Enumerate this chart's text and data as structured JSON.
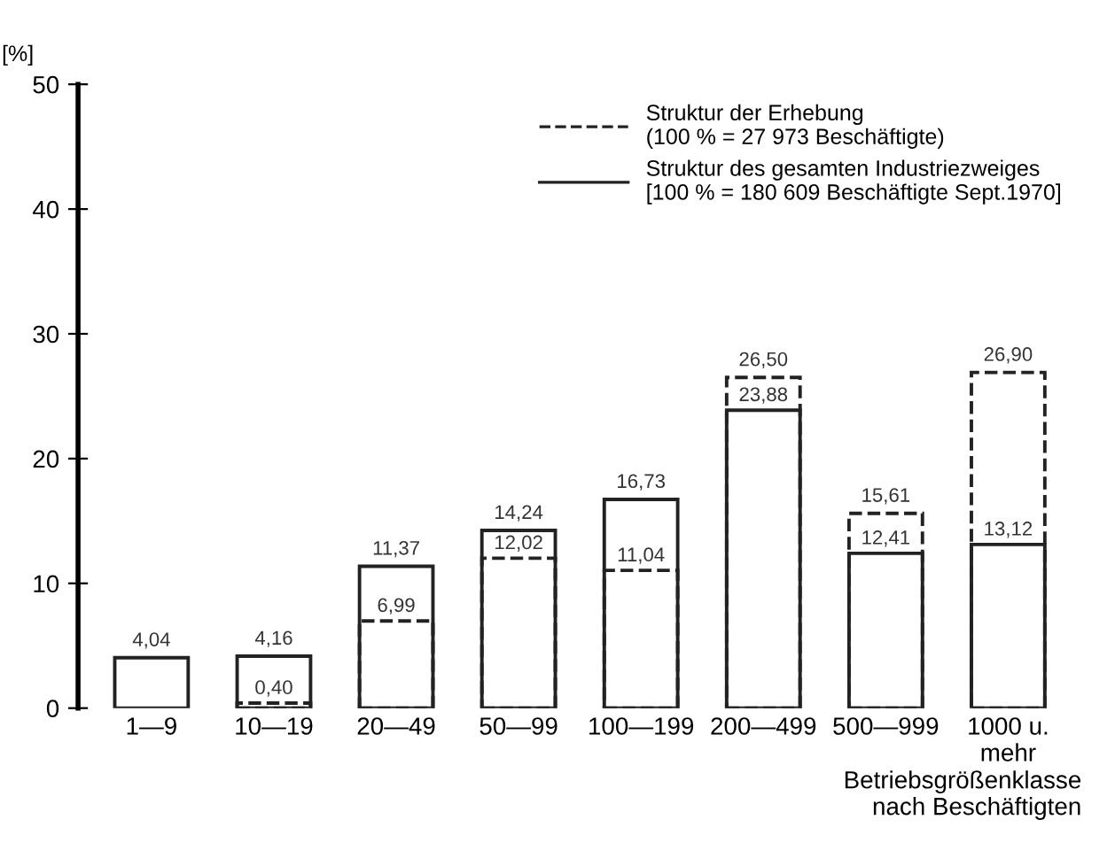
{
  "chart_data": {
    "type": "bar",
    "ylabel": "[%]",
    "xlabel": "Betriebsgrößenklasse\nnach Beschäftigten",
    "categories": [
      "1—9",
      "10—19",
      "20—49",
      "50—99",
      "100—199",
      "200—499",
      "500—999",
      "1000 u.\nmehr"
    ],
    "series": [
      {
        "name": "Struktur der Erhebung\n(100 % = 27 973 Beschäftigte)",
        "color": "#222222",
        "line_style": "dashed",
        "values": [
          null,
          0.4,
          6.99,
          12.02,
          11.04,
          26.5,
          15.61,
          26.9
        ],
        "value_labels": [
          null,
          "0,40",
          "6,99",
          "12,02",
          "11,04",
          "26,50",
          "15,61",
          "26,90"
        ]
      },
      {
        "name": "Struktur des gesamten Industriezweiges\n[100 % = 180 609 Beschäftigte Sept.1970]",
        "color": "#222222",
        "line_style": "solid",
        "values": [
          4.04,
          4.16,
          11.37,
          14.24,
          16.73,
          23.88,
          12.41,
          13.12
        ],
        "value_labels": [
          "4,04",
          "4,16",
          "11,37",
          "14,24",
          "16,73",
          "23,88",
          "12,41",
          "13,12"
        ]
      }
    ],
    "ylim": [
      0,
      50
    ],
    "yticks": [
      0,
      10,
      20,
      30,
      40,
      50
    ],
    "grid": false,
    "legend": "top right"
  }
}
